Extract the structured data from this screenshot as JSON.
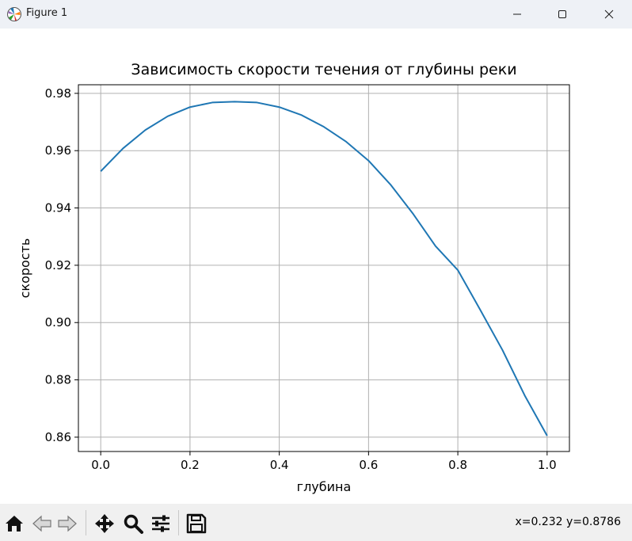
{
  "window": {
    "title": "Figure 1",
    "controls": [
      "minimize-icon",
      "maximize-icon",
      "close-icon"
    ]
  },
  "toolbar": {
    "tools": [
      "home-icon",
      "back-icon",
      "forward-icon",
      "pan-icon",
      "zoom-icon",
      "configure-subplots-icon",
      "save-icon"
    ],
    "coords": "x=0.232 y=0.8786"
  },
  "chart_data": {
    "type": "line",
    "title": "Зависимость скорости течения от глубины реки",
    "xlabel": "глубина",
    "ylabel": "скорость",
    "xlim": [
      -0.05,
      1.05
    ],
    "ylim": [
      0.855,
      0.983
    ],
    "xticks": [
      0.0,
      0.2,
      0.4,
      0.6,
      0.8,
      1.0
    ],
    "xtick_labels": [
      "0.0",
      "0.2",
      "0.4",
      "0.6",
      "0.8",
      "1.0"
    ],
    "yticks": [
      0.86,
      0.88,
      0.9,
      0.92,
      0.94,
      0.96,
      0.98
    ],
    "ytick_labels": [
      "0.86",
      "0.88",
      "0.90",
      "0.92",
      "0.94",
      "0.96",
      "0.98"
    ],
    "grid": true,
    "series": [
      {
        "color": "#1f77b4",
        "x": [
          0.0,
          0.05,
          0.1,
          0.15,
          0.2,
          0.25,
          0.3,
          0.35,
          0.4,
          0.45,
          0.5,
          0.55,
          0.6,
          0.65,
          0.7,
          0.75,
          0.8,
          0.85,
          0.9,
          0.95,
          1.0
        ],
        "y": [
          0.9528,
          0.9608,
          0.9672,
          0.972,
          0.9752,
          0.9768,
          0.9771,
          0.9768,
          0.9752,
          0.9724,
          0.9683,
          0.9631,
          0.9565,
          0.948,
          0.9379,
          0.9267,
          0.9183,
          0.9045,
          0.8904,
          0.8745,
          0.8605
        ]
      }
    ]
  }
}
